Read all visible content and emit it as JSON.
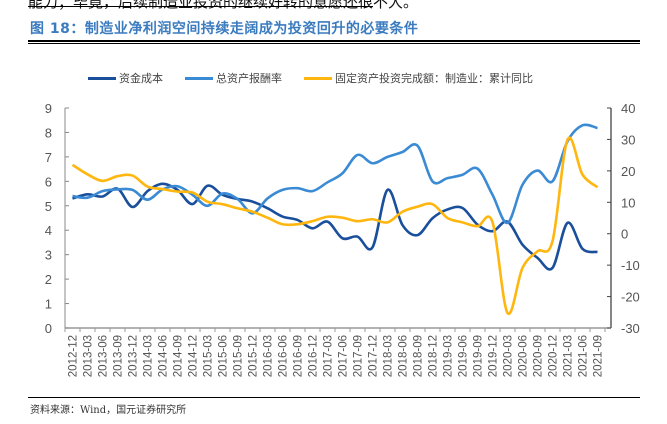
{
  "header": {
    "clipped_text": "能力；毕竟，后续制造业投资的继续好转的意愿还很不大。",
    "figure_title": "图 18：制造业净利润空间持续走阔成为投资回升的必要条件"
  },
  "source": "资料来源：Wind，国元证券研究所",
  "colors": {
    "funding_cost": "#1a4f9c",
    "roa": "#3a8ad4",
    "fai": "#ffb60f",
    "title": "#3b7bbf"
  },
  "chart_data": {
    "type": "line",
    "title": "",
    "legend_position": "top",
    "grid": false,
    "x": [
      "2012-12",
      "2013-03",
      "2013-06",
      "2013-09",
      "2013-12",
      "2014-03",
      "2014-06",
      "2014-09",
      "2014-12",
      "2015-03",
      "2015-06",
      "2015-09",
      "2015-12",
      "2016-03",
      "2016-06",
      "2016-09",
      "2016-12",
      "2017-03",
      "2017-06",
      "2017-09",
      "2017-12",
      "2018-03",
      "2018-06",
      "2018-09",
      "2018-12",
      "2019-03",
      "2019-06",
      "2019-09",
      "2019-12",
      "2020-03",
      "2020-06",
      "2020-09",
      "2020-12",
      "2021-03",
      "2021-06",
      "2021-09"
    ],
    "y_left": {
      "range": [
        0,
        9
      ],
      "ticks": [
        "0",
        "1",
        "2",
        "3",
        "4",
        "5",
        "6",
        "7",
        "8",
        "9"
      ]
    },
    "y_right": {
      "range": [
        -30,
        40
      ],
      "ticks": [
        "-30",
        "-20",
        "-10",
        "0",
        "10",
        "20",
        "30",
        "40"
      ]
    },
    "series": [
      {
        "name": "资金成本",
        "axis": "left",
        "color": "#1a4f9c",
        "values": [
          5.3,
          5.47,
          5.38,
          5.7,
          4.95,
          5.6,
          5.9,
          5.65,
          5.07,
          5.82,
          5.45,
          5.28,
          5.17,
          4.9,
          4.56,
          4.42,
          4.08,
          4.35,
          3.67,
          3.74,
          3.3,
          5.65,
          4.21,
          3.8,
          4.49,
          4.85,
          4.91,
          4.23,
          3.96,
          4.35,
          3.41,
          2.87,
          2.46,
          4.3,
          3.24,
          3.11
        ]
      },
      {
        "name": "总资产报酬率",
        "axis": "left",
        "color": "#3a8ad4",
        "values": [
          5.4,
          5.33,
          5.6,
          5.67,
          5.65,
          5.25,
          5.67,
          5.8,
          5.45,
          5.0,
          5.5,
          5.28,
          4.69,
          5.3,
          5.65,
          5.72,
          5.6,
          5.96,
          6.33,
          7.08,
          6.74,
          7.0,
          7.2,
          7.46,
          6.0,
          6.13,
          6.27,
          6.52,
          5.45,
          4.3,
          5.86,
          6.44,
          6.0,
          7.64,
          8.29,
          8.18
        ]
      },
      {
        "name": "固定资产投资完成额：制造业：累计同比",
        "axis": "right",
        "color": "#ffb60f",
        "values": [
          21.9,
          18.9,
          16.8,
          18.3,
          18.5,
          15.0,
          14.2,
          13.4,
          13.1,
          10.2,
          9.4,
          8.1,
          7.0,
          5.1,
          3.0,
          3.0,
          4.0,
          5.4,
          5.1,
          4.0,
          4.6,
          3.6,
          7.0,
          8.6,
          9.4,
          5.0,
          3.6,
          2.4,
          3.7,
          -25.2,
          -10.9,
          -5.6,
          -2.4,
          29.9,
          18.8,
          14.8
        ]
      }
    ]
  }
}
